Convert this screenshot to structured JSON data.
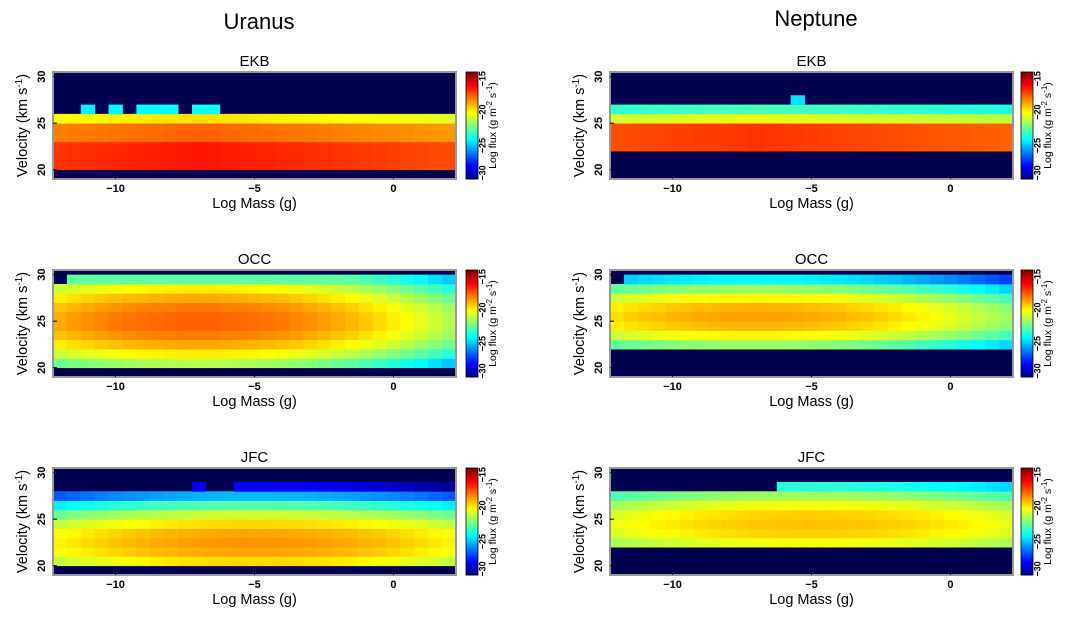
{
  "columns": [
    {
      "title": "Uranus"
    },
    {
      "title": "Neptune"
    }
  ],
  "chart_data": [
    {
      "type": "heatmap",
      "planet": "Uranus",
      "title": "EKB",
      "xlabel": "Log Mass (g)",
      "ylabel": "Velocity (km s-1)",
      "xlim": [
        -12.25,
        2.25
      ],
      "ylim": [
        19,
        30.5
      ],
      "xticks": [
        -10,
        -5,
        0
      ],
      "yticks": [
        20,
        25,
        30
      ],
      "colorbar": {
        "label": "Log flux (g m-2 s-1)",
        "range": [
          -30,
          -14
        ],
        "ticks": [
          -30,
          -25,
          -20,
          -15
        ]
      },
      "x_centers_start": -12,
      "x_step": 0.5,
      "y_centers_start": 19.5,
      "y_step": 1,
      "profile": {
        "peak": -16.3,
        "rows": [
          [
            20,
            23,
            0
          ],
          [
            23,
            24.8,
            -1.2
          ],
          [
            24.8,
            26.2,
            -3.2
          ]
        ],
        "xslope": 0.1,
        "xpeak": -7,
        "top_edge": 26,
        "top_bumps": [
          [
            -11,
            27
          ],
          [
            -10,
            27
          ],
          [
            -9,
            27
          ],
          [
            -8.5,
            27
          ],
          [
            -8,
            27
          ],
          [
            -7,
            27
          ],
          [
            -6.5,
            27
          ]
        ],
        "blue_from": -5
      }
    },
    {
      "type": "heatmap",
      "planet": "Neptune",
      "title": "EKB",
      "xlabel": "Log Mass (g)",
      "ylabel": "Velocity (km s-1)",
      "xlim": [
        -12.25,
        2.25
      ],
      "ylim": [
        19,
        30.5
      ],
      "xticks": [
        -10,
        -5,
        0
      ],
      "yticks": [
        20,
        25,
        30
      ],
      "colorbar": {
        "label": "Log flux (g m-2 s-1)",
        "range": [
          -30,
          -14
        ],
        "ticks": [
          -30,
          -25,
          -20,
          -15
        ]
      },
      "x_centers_start": -12,
      "x_step": 0.5,
      "y_centers_start": 19.5,
      "y_step": 1,
      "profile": {
        "peak": -16.8,
        "rows": [
          [
            22,
            25,
            0
          ],
          [
            25,
            26,
            -3.5
          ],
          [
            26,
            27,
            -6
          ]
        ],
        "xslope": 0.08,
        "xpeak": -7,
        "top_edge": 27,
        "top_bumps": [
          [
            -5.5,
            28
          ]
        ],
        "blue_from": -5
      }
    },
    {
      "type": "heatmap",
      "planet": "Uranus",
      "title": "OCC",
      "xlabel": "Log Mass (g)",
      "ylabel": "Velocity (km s-1)",
      "xlim": [
        -12.25,
        2.25
      ],
      "ylim": [
        19,
        30.5
      ],
      "xticks": [
        -10,
        -5,
        0
      ],
      "yticks": [
        20,
        25,
        30
      ],
      "colorbar": {
        "label": "Log flux (g m-2 s-1)",
        "range": [
          -30,
          -14
        ],
        "ticks": [
          -30,
          -25,
          -20,
          -15
        ]
      },
      "x_centers_start": -12,
      "x_step": 0.5,
      "y_centers_start": 19.5,
      "y_step": 1,
      "profile": {
        "peak": -17.5,
        "center": 25,
        "vwidth": 5.5,
        "xpeak": -7,
        "xwidth": 10,
        "bottom": 20,
        "top": 29,
        "top_left": -11.5,
        "top_bump": -6.5
      }
    },
    {
      "type": "heatmap",
      "planet": "Neptune",
      "title": "OCC",
      "xlabel": "Log Mass (g)",
      "ylabel": "Velocity (km s-1)",
      "xlim": [
        -12.25,
        2.25
      ],
      "ylim": [
        19,
        30.5
      ],
      "xticks": [
        -10,
        -5,
        0
      ],
      "yticks": [
        20,
        25,
        30
      ],
      "colorbar": {
        "label": "Log flux (g m-2 s-1)",
        "range": [
          -30,
          -14
        ],
        "ticks": [
          -30,
          -25,
          -20,
          -15
        ]
      },
      "x_centers_start": -12,
      "x_step": 0.5,
      "y_centers_start": 19.5,
      "y_step": 1,
      "profile": {
        "peak": -18.5,
        "center": 25.5,
        "vwidth": 4,
        "xpeak": -7,
        "xwidth": 11,
        "bottom": 22,
        "top": 29,
        "top_left": -11.5,
        "top_bump": -99
      }
    },
    {
      "type": "heatmap",
      "planet": "Uranus",
      "title": "JFC",
      "xlabel": "Log Mass (g)",
      "ylabel": "Velocity (km s-1)",
      "xlim": [
        -12.25,
        2.25
      ],
      "ylim": [
        19,
        30.5
      ],
      "xticks": [
        -10,
        -5,
        0
      ],
      "yticks": [
        20,
        25,
        30
      ],
      "colorbar": {
        "label": "Log flux (g m-2 s-1)",
        "range": [
          -30,
          -14
        ],
        "ticks": [
          -30,
          -25,
          -20,
          -15
        ]
      },
      "x_centers_start": -12,
      "x_step": 0.5,
      "y_centers_start": 19.5,
      "y_step": 1,
      "profile": {
        "peak": -18.3,
        "center": 22.5,
        "vwidth": 4.5,
        "xpeak": -5,
        "xwidth": 12,
        "bottom": 20,
        "top": 28,
        "top_left": -10,
        "top_bump": -7
      }
    },
    {
      "type": "heatmap",
      "planet": "Neptune",
      "title": "JFC",
      "xlabel": "Log Mass (g)",
      "ylabel": "Velocity (km s-1)",
      "xlim": [
        -12.25,
        2.25
      ],
      "ylim": [
        19,
        30.5
      ],
      "xticks": [
        -10,
        -5,
        0
      ],
      "yticks": [
        20,
        25,
        30
      ],
      "colorbar": {
        "label": "Log flux (g m-2 s-1)",
        "range": [
          -30,
          -14
        ],
        "ticks": [
          -30,
          -25,
          -20,
          -15
        ]
      },
      "x_centers_start": -12,
      "x_step": 0.5,
      "y_centers_start": 19.5,
      "y_step": 1,
      "profile": {
        "peak": -19,
        "center": 24.5,
        "vwidth": 4.5,
        "xpeak": -5,
        "xwidth": 13,
        "bottom": 22,
        "top": 28,
        "top_left": -12.5,
        "top_bump": -6
      }
    }
  ]
}
